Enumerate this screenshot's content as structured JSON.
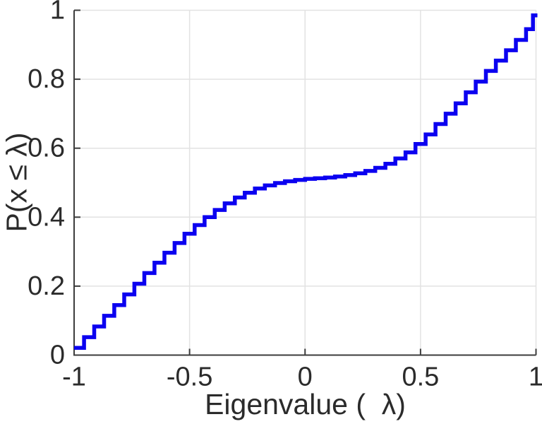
{
  "figure": {
    "background": "#ffffff",
    "curve_color": "#0b00f0",
    "axis_color": "#3c3c3c",
    "tick_label_color": "#2b2b2b",
    "grid_color": "#e2e2e2",
    "tick_font_px": 38
  },
  "chart_data": {
    "type": "line",
    "subtype": "step-cdf-stairs",
    "title": "",
    "xlabel": "Eigenvalue (  λ)",
    "ylabel": "P(x ≤ λ)",
    "xlim": [
      -1,
      1
    ],
    "ylim": [
      0,
      1
    ],
    "grid": true,
    "legend": "none",
    "xticks": {
      "values": [
        -1,
        -0.5,
        0,
        0.5,
        1
      ],
      "labels": [
        "-1",
        "-0.5",
        "0",
        "0.5",
        "1"
      ]
    },
    "yticks": {
      "values": [
        0,
        0.2,
        0.4,
        0.6,
        0.8,
        1
      ],
      "labels": [
        "0",
        "0.2",
        "0.4",
        "0.6",
        "0.8",
        "1"
      ]
    },
    "series": [
      {
        "name": "eigenvalue-cdf",
        "color": "#0b00f0",
        "x": [
          -1.0,
          -0.957,
          -0.913,
          -0.87,
          -0.826,
          -0.783,
          -0.739,
          -0.696,
          -0.652,
          -0.609,
          -0.565,
          -0.522,
          -0.478,
          -0.435,
          -0.391,
          -0.348,
          -0.304,
          -0.261,
          -0.217,
          -0.174,
          -0.13,
          -0.087,
          -0.043,
          0.0,
          0.043,
          0.087,
          0.13,
          0.174,
          0.217,
          0.261,
          0.304,
          0.348,
          0.391,
          0.435,
          0.478,
          0.522,
          0.565,
          0.609,
          0.652,
          0.696,
          0.739,
          0.783,
          0.826,
          0.87,
          0.913,
          0.957,
          0.987
        ],
        "y": [
          0.021,
          0.052,
          0.083,
          0.114,
          0.145,
          0.176,
          0.207,
          0.238,
          0.268,
          0.297,
          0.325,
          0.352,
          0.377,
          0.4,
          0.421,
          0.44,
          0.457,
          0.471,
          0.483,
          0.492,
          0.499,
          0.504,
          0.508,
          0.511,
          0.513,
          0.515,
          0.518,
          0.522,
          0.527,
          0.534,
          0.543,
          0.555,
          0.57,
          0.588,
          0.612,
          0.64,
          0.67,
          0.7,
          0.73,
          0.762,
          0.793,
          0.824,
          0.854,
          0.884,
          0.914,
          0.945,
          0.985
        ]
      }
    ]
  }
}
